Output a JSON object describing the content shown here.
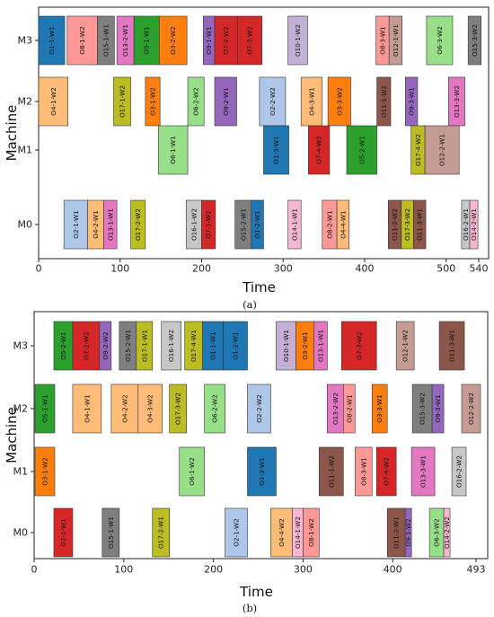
{
  "chart_data": [
    {
      "type": "gantt",
      "panel_label": "(a)",
      "xlabel": "Time",
      "ylabel": "Machine",
      "xlim": [
        0,
        540
      ],
      "xticks": [
        "0",
        "100",
        "200",
        "300",
        "400",
        "500",
        "540"
      ],
      "machines": [
        "M0",
        "M1",
        "M2",
        "M3"
      ],
      "tasks": [
        {
          "label": "O1-1-W1",
          "machine": "M3",
          "start": 0,
          "end": 32,
          "color": "#1f77b4"
        },
        {
          "label": "O8-1-W2",
          "machine": "M3",
          "start": 35,
          "end": 72,
          "color": "#ff9896"
        },
        {
          "label": "O15-1-W1",
          "machine": "M3",
          "start": 72,
          "end": 93,
          "color": "#7f7f7f"
        },
        {
          "label": "O13-2-W1",
          "machine": "M3",
          "start": 96,
          "end": 117,
          "color": "#e377c2"
        },
        {
          "label": "O5-1-W1",
          "machine": "M3",
          "start": 117,
          "end": 148,
          "color": "#2ca02c"
        },
        {
          "label": "O3-2-W2",
          "machine": "M3",
          "start": 148,
          "end": 182,
          "color": "#ff7f0e"
        },
        {
          "label": "O9-1-W1",
          "machine": "M3",
          "start": 202,
          "end": 216,
          "color": "#9467bd"
        },
        {
          "label": "O7-2-W2",
          "machine": "M3",
          "start": 216,
          "end": 244,
          "color": "#d62728"
        },
        {
          "label": "O7-3-W2",
          "machine": "M3",
          "start": 244,
          "end": 274,
          "color": "#d62728"
        },
        {
          "label": "O10-1-W2",
          "machine": "M3",
          "start": 306,
          "end": 330,
          "color": "#c5b0d5"
        },
        {
          "label": "O8-3-W1",
          "machine": "M3",
          "start": 414,
          "end": 430,
          "color": "#ff9896"
        },
        {
          "label": "O12-1-W1",
          "machine": "M3",
          "start": 430,
          "end": 446,
          "color": "#c49c94"
        },
        {
          "label": "O6-3-W2",
          "machine": "M3",
          "start": 476,
          "end": 508,
          "color": "#98df8a"
        },
        {
          "label": "O15-3-W2",
          "machine": "M3",
          "start": 527,
          "end": 543,
          "color": "#7f7f7f"
        },
        {
          "label": "O4-1-W2",
          "machine": "M2",
          "start": 0,
          "end": 36,
          "color": "#ffbb78"
        },
        {
          "label": "O17-1-W2",
          "machine": "M2",
          "start": 92,
          "end": 113,
          "color": "#bcbd22"
        },
        {
          "label": "O3-1-W2",
          "machine": "M2",
          "start": 131,
          "end": 149,
          "color": "#ff7f0e"
        },
        {
          "label": "O6-2-W2",
          "machine": "M2",
          "start": 183,
          "end": 203,
          "color": "#98df8a"
        },
        {
          "label": "O9-2-W1",
          "machine": "M2",
          "start": 216,
          "end": 243,
          "color": "#9467bd"
        },
        {
          "label": "O2-2-W2",
          "machine": "M2",
          "start": 271,
          "end": 303,
          "color": "#aec7e8"
        },
        {
          "label": "O4-3-W1",
          "machine": "M2",
          "start": 322,
          "end": 348,
          "color": "#ffbb78"
        },
        {
          "label": "O3-3-W2",
          "machine": "M2",
          "start": 355,
          "end": 383,
          "color": "#ff7f0e"
        },
        {
          "label": "O11-1-W2",
          "machine": "M2",
          "start": 415,
          "end": 432,
          "color": "#8c564b"
        },
        {
          "label": "O9-3-W1",
          "machine": "M2",
          "start": 450,
          "end": 465,
          "color": "#9467bd"
        },
        {
          "label": "O13-3-W2",
          "machine": "M2",
          "start": 503,
          "end": 523,
          "color": "#e377c2"
        },
        {
          "label": "O6-1-W1",
          "machine": "M1",
          "start": 147,
          "end": 183,
          "color": "#98df8a"
        },
        {
          "label": "O1-3-W1",
          "machine": "M1",
          "start": 276,
          "end": 307,
          "color": "#1f77b4"
        },
        {
          "label": "O7-4-W2",
          "machine": "M1",
          "start": 331,
          "end": 357,
          "color": "#d62728"
        },
        {
          "label": "O5-2-W1",
          "machine": "M1",
          "start": 378,
          "end": 415,
          "color": "#2ca02c"
        },
        {
          "label": "O17-4-W2",
          "machine": "M1",
          "start": 457,
          "end": 474,
          "color": "#bcbd22"
        },
        {
          "label": "O12-2-W1",
          "machine": "M1",
          "start": 474,
          "end": 516,
          "color": "#c49c94"
        },
        {
          "label": "O2-1-W1",
          "machine": "M0",
          "start": 31,
          "end": 60,
          "color": "#aec7e8"
        },
        {
          "label": "O4-2-W1",
          "machine": "M0",
          "start": 60,
          "end": 80,
          "color": "#ffbb78"
        },
        {
          "label": "O13-1-W1",
          "machine": "M0",
          "start": 80,
          "end": 96,
          "color": "#e377c2"
        },
        {
          "label": "O17-2-W2",
          "machine": "M0",
          "start": 113,
          "end": 131,
          "color": "#bcbd22"
        },
        {
          "label": "O16-1-W2",
          "machine": "M0",
          "start": 181,
          "end": 200,
          "color": "#c7c7c7"
        },
        {
          "label": "O7-1-W2",
          "machine": "M0",
          "start": 200,
          "end": 217,
          "color": "#d62728"
        },
        {
          "label": "O15-2-W1",
          "machine": "M0",
          "start": 241,
          "end": 261,
          "color": "#7f7f7f"
        },
        {
          "label": "O1-2-W1",
          "machine": "M0",
          "start": 261,
          "end": 276,
          "color": "#1f77b4"
        },
        {
          "label": "O14-1-W1",
          "machine": "M0",
          "start": 306,
          "end": 322,
          "color": "#f7b6d2"
        },
        {
          "label": "O8-2-W1",
          "machine": "M0",
          "start": 348,
          "end": 366,
          "color": "#ff9896"
        },
        {
          "label": "O4-4-W1",
          "machine": "M0",
          "start": 366,
          "end": 381,
          "color": "#ffbb78"
        },
        {
          "label": "O11-2-W2",
          "machine": "M0",
          "start": 429,
          "end": 445,
          "color": "#8c564b"
        },
        {
          "label": "O17-3-W2",
          "machine": "M0",
          "start": 445,
          "end": 460,
          "color": "#bcbd22"
        },
        {
          "label": "O11-3-W1",
          "machine": "M0",
          "start": 460,
          "end": 475,
          "color": "#8c564b"
        },
        {
          "label": "O16-2-W1",
          "machine": "M0",
          "start": 519,
          "end": 529,
          "color": "#c7c7c7"
        },
        {
          "label": "O14-2-W1",
          "machine": "M0",
          "start": 529,
          "end": 539,
          "color": "#f7b6d2"
        }
      ]
    },
    {
      "type": "gantt",
      "panel_label": "(b)",
      "xlabel": "Time",
      "ylabel": "Machine",
      "xlim": [
        0,
        493
      ],
      "xticks": [
        "0",
        "100",
        "200",
        "300",
        "400",
        "493"
      ],
      "machines": [
        "M0",
        "M1",
        "M2",
        "M3"
      ],
      "tasks": [
        {
          "label": "O5-2-W1",
          "machine": "M3",
          "start": 22,
          "end": 43,
          "color": "#2ca02c"
        },
        {
          "label": "O7-2-W2",
          "machine": "M3",
          "start": 43,
          "end": 73,
          "color": "#d62728"
        },
        {
          "label": "O9-2-W2",
          "machine": "M3",
          "start": 73,
          "end": 86,
          "color": "#9467bd"
        },
        {
          "label": "O15-2-W1",
          "machine": "M3",
          "start": 95,
          "end": 114,
          "color": "#7f7f7f"
        },
        {
          "label": "O17-1-W1",
          "machine": "M3",
          "start": 114,
          "end": 132,
          "color": "#bcbd22"
        },
        {
          "label": "O16-1-W2",
          "machine": "M3",
          "start": 142,
          "end": 164,
          "color": "#c7c7c7"
        },
        {
          "label": "O17-4-W1",
          "machine": "M3",
          "start": 168,
          "end": 188,
          "color": "#bcbd22"
        },
        {
          "label": "O1-1-W1",
          "machine": "M3",
          "start": 188,
          "end": 211,
          "color": "#1f77b4"
        },
        {
          "label": "O1-2-W1",
          "machine": "M3",
          "start": 211,
          "end": 238,
          "color": "#1f77b4"
        },
        {
          "label": "O10-1-W1",
          "machine": "M3",
          "start": 270,
          "end": 292,
          "color": "#c5b0d5"
        },
        {
          "label": "O3-2-W1",
          "machine": "M3",
          "start": 292,
          "end": 312,
          "color": "#ff7f0e"
        },
        {
          "label": "O13-1-W1",
          "machine": "M3",
          "start": 312,
          "end": 327,
          "color": "#e377c2"
        },
        {
          "label": "O7-3-W2",
          "machine": "M3",
          "start": 343,
          "end": 382,
          "color": "#d62728"
        },
        {
          "label": "O12-1-W2",
          "machine": "M3",
          "start": 404,
          "end": 424,
          "color": "#c49c94"
        },
        {
          "label": "O11-3-W1",
          "machine": "M3",
          "start": 452,
          "end": 480,
          "color": "#8c564b"
        },
        {
          "label": "O5-1-W1",
          "machine": "M2",
          "start": 1,
          "end": 23,
          "color": "#2ca02c"
        },
        {
          "label": "O4-1-W1",
          "machine": "M2",
          "start": 43,
          "end": 75,
          "color": "#ffbb78"
        },
        {
          "label": "O4-2-W2",
          "machine": "M2",
          "start": 86,
          "end": 116,
          "color": "#ffbb78"
        },
        {
          "label": "O4-3-W2",
          "machine": "M2",
          "start": 116,
          "end": 143,
          "color": "#ffbb78"
        },
        {
          "label": "O17-3-W2",
          "machine": "M2",
          "start": 151,
          "end": 170,
          "color": "#bcbd22"
        },
        {
          "label": "O6-2-W2",
          "machine": "M2",
          "start": 190,
          "end": 213,
          "color": "#98df8a"
        },
        {
          "label": "O2-2-W2",
          "machine": "M2",
          "start": 238,
          "end": 264,
          "color": "#aec7e8"
        },
        {
          "label": "O13-2-W2",
          "machine": "M2",
          "start": 327,
          "end": 345,
          "color": "#e377c2"
        },
        {
          "label": "O8-2-W1",
          "machine": "M2",
          "start": 345,
          "end": 358,
          "color": "#ff9896"
        },
        {
          "label": "O3-3-W1",
          "machine": "M2",
          "start": 377,
          "end": 394,
          "color": "#ff7f0e"
        },
        {
          "label": "O15-3-W2",
          "machine": "M2",
          "start": 422,
          "end": 444,
          "color": "#7f7f7f"
        },
        {
          "label": "O9-3-W1",
          "machine": "M2",
          "start": 444,
          "end": 457,
          "color": "#9467bd"
        },
        {
          "label": "O12-2-W2",
          "machine": "M2",
          "start": 477,
          "end": 498,
          "color": "#c49c94"
        },
        {
          "label": "O3-1-W2",
          "machine": "M1",
          "start": 1,
          "end": 23,
          "color": "#ff7f0e"
        },
        {
          "label": "O6-1-W2",
          "machine": "M1",
          "start": 162,
          "end": 190,
          "color": "#98df8a"
        },
        {
          "label": "O1-3-W1",
          "machine": "M1",
          "start": 238,
          "end": 270,
          "color": "#1f77b4"
        },
        {
          "label": "O11-1-W2",
          "machine": "M1",
          "start": 318,
          "end": 345,
          "color": "#8c564b"
        },
        {
          "label": "O8-3-W1",
          "machine": "M1",
          "start": 358,
          "end": 377,
          "color": "#ff9896"
        },
        {
          "label": "O7-4-W2",
          "machine": "M1",
          "start": 382,
          "end": 404,
          "color": "#d62728"
        },
        {
          "label": "O13-3-W1",
          "machine": "M1",
          "start": 421,
          "end": 447,
          "color": "#e377c2"
        },
        {
          "label": "O16-2-W2",
          "machine": "M1",
          "start": 466,
          "end": 482,
          "color": "#c7c7c7"
        },
        {
          "label": "O7-1-W1",
          "machine": "M0",
          "start": 22,
          "end": 43,
          "color": "#d62728"
        },
        {
          "label": "O15-1-W1",
          "machine": "M0",
          "start": 76,
          "end": 95,
          "color": "#7f7f7f"
        },
        {
          "label": "O17-2-W1",
          "machine": "M0",
          "start": 132,
          "end": 151,
          "color": "#bcbd22"
        },
        {
          "label": "O2-1-W2",
          "machine": "M0",
          "start": 213,
          "end": 238,
          "color": "#aec7e8"
        },
        {
          "label": "O4-4-W2",
          "machine": "M0",
          "start": 264,
          "end": 288,
          "color": "#ffbb78"
        },
        {
          "label": "O14-1-W2",
          "machine": "M0",
          "start": 288,
          "end": 300,
          "color": "#f7b6d2"
        },
        {
          "label": "O8-1-W2",
          "machine": "M0",
          "start": 300,
          "end": 318,
          "color": "#ff9896"
        },
        {
          "label": "O11-2-W1",
          "machine": "M0",
          "start": 394,
          "end": 414,
          "color": "#8c564b"
        },
        {
          "label": "O9-1-W2",
          "machine": "M0",
          "start": 414,
          "end": 421,
          "color": "#9467bd"
        },
        {
          "label": "O6-3-W2",
          "machine": "M0",
          "start": 441,
          "end": 457,
          "color": "#98df8a"
        },
        {
          "label": "O14-2-W2",
          "machine": "M0",
          "start": 457,
          "end": 464,
          "color": "#f7b6d2"
        }
      ]
    }
  ]
}
